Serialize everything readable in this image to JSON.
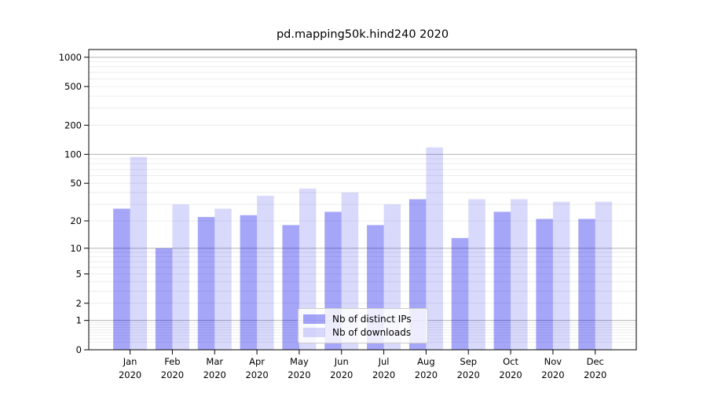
{
  "chart_data": {
    "type": "bar",
    "title": "pd.mapping50k.hind240 2020",
    "categories": [
      "Jan",
      "Feb",
      "Mar",
      "Apr",
      "May",
      "Jun",
      "Jul",
      "Aug",
      "Sep",
      "Oct",
      "Nov",
      "Dec"
    ],
    "x_year_label": "2020",
    "series": [
      {
        "name": "Nb of distinct IPs",
        "color": "rgba(0,0,235,0.35)",
        "values": [
          27,
          10,
          22,
          23,
          18,
          25,
          18,
          34,
          13,
          25,
          21,
          21
        ]
      },
      {
        "name": "Nb of downloads",
        "color": "rgba(0,0,235,0.15)",
        "values": [
          94,
          30,
          27,
          37,
          44,
          40,
          30,
          118,
          34,
          34,
          32,
          32
        ]
      }
    ],
    "yscale": "log1p",
    "yticks": [
      0,
      1,
      2,
      5,
      10,
      20,
      50,
      100,
      200,
      500,
      1000
    ],
    "ylim": [
      0,
      1200
    ],
    "grid": true,
    "legend_position": "lower center"
  },
  "colors": {
    "major_grid": "#b3b3b3",
    "minor_grid": "#e9e9e9",
    "spine": "#000000",
    "text": "#000000"
  }
}
